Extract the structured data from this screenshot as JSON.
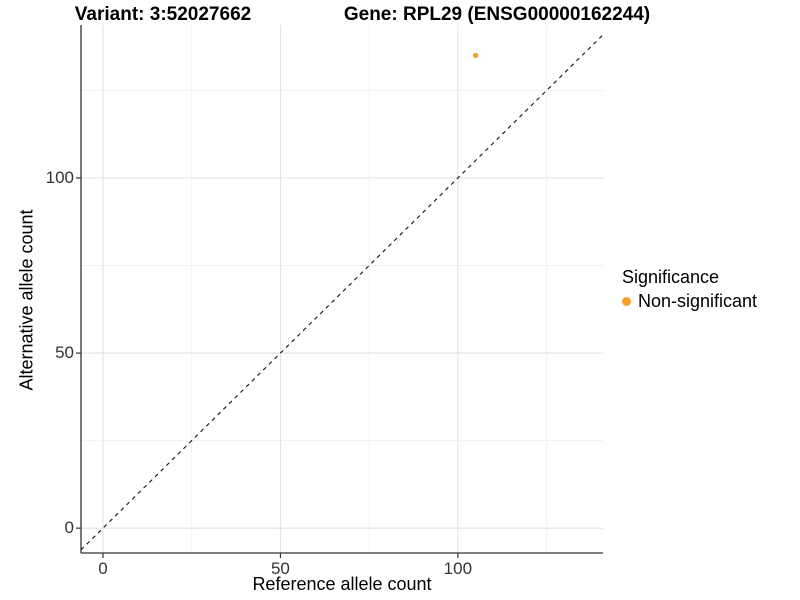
{
  "chart_data": {
    "type": "scatter",
    "title_variant": "Variant: 3:52027662",
    "title_gene": "Gene: RPL29 (ENSG00000162244)",
    "xlabel": "Reference allele count",
    "ylabel": "Alternative allele count",
    "x_ticks": [
      0,
      50,
      100
    ],
    "y_ticks": [
      0,
      50,
      100
    ],
    "x_minor_ticks": [
      25,
      75,
      125
    ],
    "y_minor_ticks": [
      25,
      75,
      125
    ],
    "xlim": [
      -6.2,
      140.9
    ],
    "ylim": [
      -7.1,
      143.7
    ],
    "grid": true,
    "points": [
      {
        "x": 105,
        "y": 135,
        "series": "Non-significant"
      }
    ],
    "identity_line": {
      "slope": 1,
      "intercept": 0,
      "style": "dashed"
    },
    "legend": {
      "position": "right",
      "title": "Significance",
      "items": [
        {
          "label": "Non-significant",
          "color": "#F8A12B"
        }
      ]
    }
  },
  "colors": {
    "point": "#F8A12B",
    "axis_line": "#333333",
    "tick_text": "#333333",
    "grid_major": "#e3e3e3",
    "grid_minor": "#f0f0f0",
    "identity_line": "#111111",
    "title_text": "#000000"
  }
}
